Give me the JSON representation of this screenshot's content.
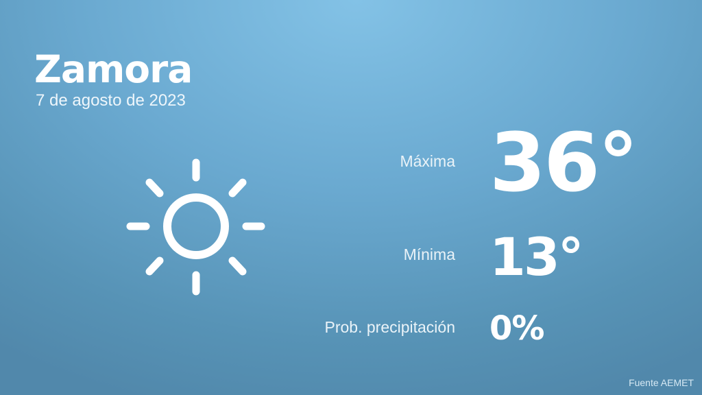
{
  "header": {
    "city": "Zamora",
    "date": "7 de agosto de 2023"
  },
  "weather": {
    "icon": "sun-icon",
    "max_label": "Máxima",
    "max_value": "36°",
    "min_label": "Mínima",
    "min_value": "13°",
    "precip_label": "Prob. precipitación",
    "precip_value": "0%"
  },
  "footer": {
    "source": "Fuente AEMET"
  },
  "colors": {
    "background_top": "#83c2e6",
    "background_bottom": "#5188ab",
    "text": "#ffffff"
  }
}
